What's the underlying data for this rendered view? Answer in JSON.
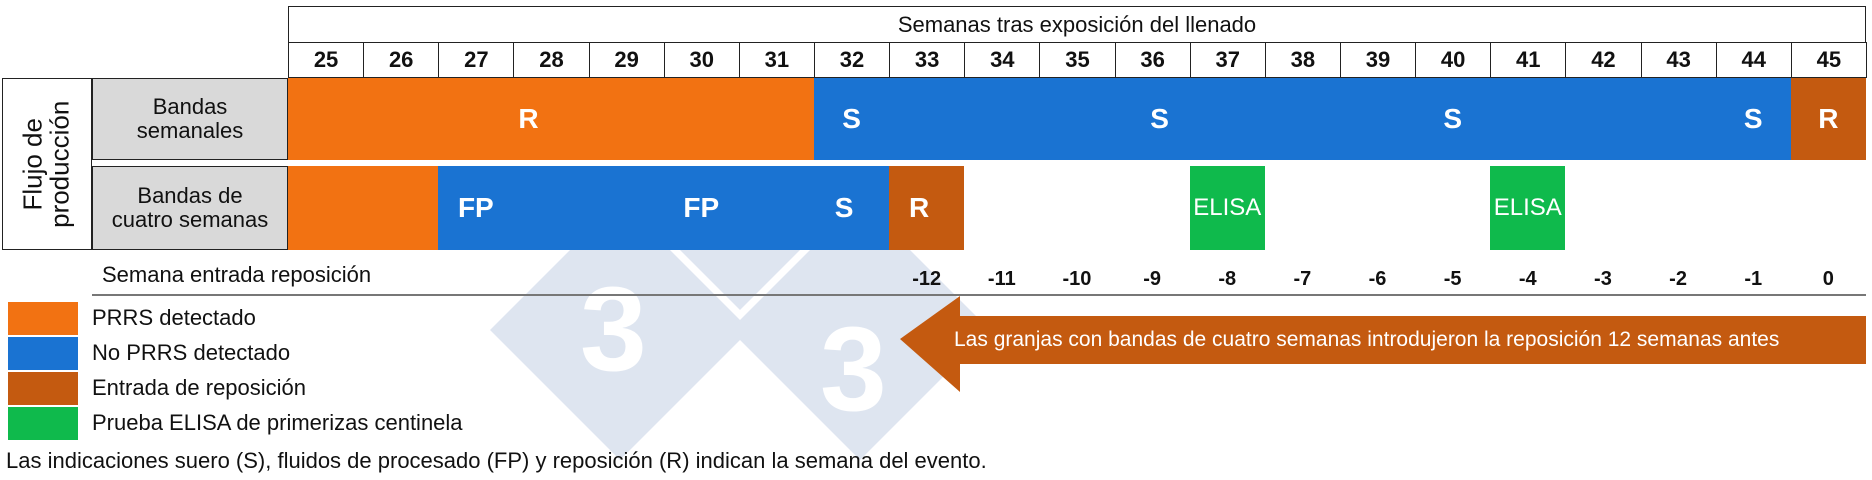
{
  "colors": {
    "orange": "#f27212",
    "blue": "#1a73d2",
    "brown": "#c45a10",
    "green": "#0fba4c",
    "label_bg": "#d9d9d9"
  },
  "header": {
    "title": "Semanas tras exposición del llenado",
    "weeks": [
      "25",
      "26",
      "27",
      "28",
      "29",
      "30",
      "31",
      "32",
      "33",
      "34",
      "35",
      "36",
      "37",
      "38",
      "39",
      "40",
      "41",
      "42",
      "43",
      "44",
      "45"
    ]
  },
  "side_label": "Flujo de producción",
  "rows": [
    {
      "label": "Bandas semanales"
    },
    {
      "label": "Bandas de cuatro semanas"
    }
  ],
  "chart_data": {
    "type": "timeline",
    "title": "Semanas tras exposición del llenado",
    "x": [
      25,
      26,
      27,
      28,
      29,
      30,
      31,
      32,
      33,
      34,
      35,
      36,
      37,
      38,
      39,
      40,
      41,
      42,
      43,
      44,
      45
    ],
    "series": [
      {
        "name": "Bandas semanales",
        "segments": [
          {
            "start": 25,
            "end": 31,
            "status": "PRRS detectado",
            "color": "orange"
          },
          {
            "start": 32,
            "end": 44,
            "status": "No PRRS detectado",
            "color": "blue"
          },
          {
            "start": 45,
            "end": 45,
            "status": "Entrada de reposición",
            "color": "brown"
          }
        ],
        "events": [
          {
            "week": 28.2,
            "label": "R"
          },
          {
            "week": 32.5,
            "label": "S"
          },
          {
            "week": 36.6,
            "label": "S"
          },
          {
            "week": 40.5,
            "label": "S"
          },
          {
            "week": 44.5,
            "label": "S"
          },
          {
            "week": 45.5,
            "label": "R"
          }
        ]
      },
      {
        "name": "Bandas de cuatro semanas",
        "segments": [
          {
            "start": 25,
            "end": 26,
            "status": "PRRS detectado",
            "color": "orange"
          },
          {
            "start": 27,
            "end": 32,
            "status": "No PRRS detectado",
            "color": "blue"
          },
          {
            "start": 33,
            "end": 33,
            "status": "Entrada de reposición",
            "color": "brown"
          },
          {
            "start": 37,
            "end": 37,
            "status": "Prueba ELISA de primerizas centinela",
            "color": "green"
          },
          {
            "start": 41,
            "end": 41,
            "status": "Prueba ELISA de primerizas centinela",
            "color": "green"
          }
        ],
        "events": [
          {
            "week": 27.5,
            "label": "FP"
          },
          {
            "week": 30.5,
            "label": "FP"
          },
          {
            "week": 32.4,
            "label": "S"
          },
          {
            "week": 33.4,
            "label": "R"
          },
          {
            "week": 37.5,
            "label": "ELISA"
          },
          {
            "week": 41.5,
            "label": "ELISA"
          }
        ]
      }
    ],
    "replacement_entry_label": "Semana entrada reposición",
    "replacement_entry_weeks": [
      {
        "week": 33,
        "value": "-12"
      },
      {
        "week": 34,
        "value": "-11"
      },
      {
        "week": 35,
        "value": "-10"
      },
      {
        "week": 36,
        "value": "-9"
      },
      {
        "week": 37,
        "value": "-8"
      },
      {
        "week": 38,
        "value": "-7"
      },
      {
        "week": 39,
        "value": "-6"
      },
      {
        "week": 40,
        "value": "-5"
      },
      {
        "week": 41,
        "value": "-4"
      },
      {
        "week": 42,
        "value": "-3"
      },
      {
        "week": 43,
        "value": "-2"
      },
      {
        "week": 44,
        "value": "-1"
      },
      {
        "week": 45,
        "value": "0"
      }
    ],
    "annotation": {
      "text": "Las granjas con bandas de cuatro semanas introdujeron la reposición 12 semanas antes",
      "from_week": 45,
      "to_week": 33
    }
  },
  "legend": [
    {
      "label": "PRRS detectado",
      "color": "orange"
    },
    {
      "label": "No PRRS detectado",
      "color": "blue"
    },
    {
      "label": "Entrada de reposición",
      "color": "brown"
    },
    {
      "label": "Prueba ELISA de primerizas centinela",
      "color": "green"
    }
  ],
  "footnote": "Las indicaciones suero (S), fluidos de procesado (FP) y reposición (R) indican la semana del evento.",
  "watermark": {
    "glyph": "3"
  }
}
